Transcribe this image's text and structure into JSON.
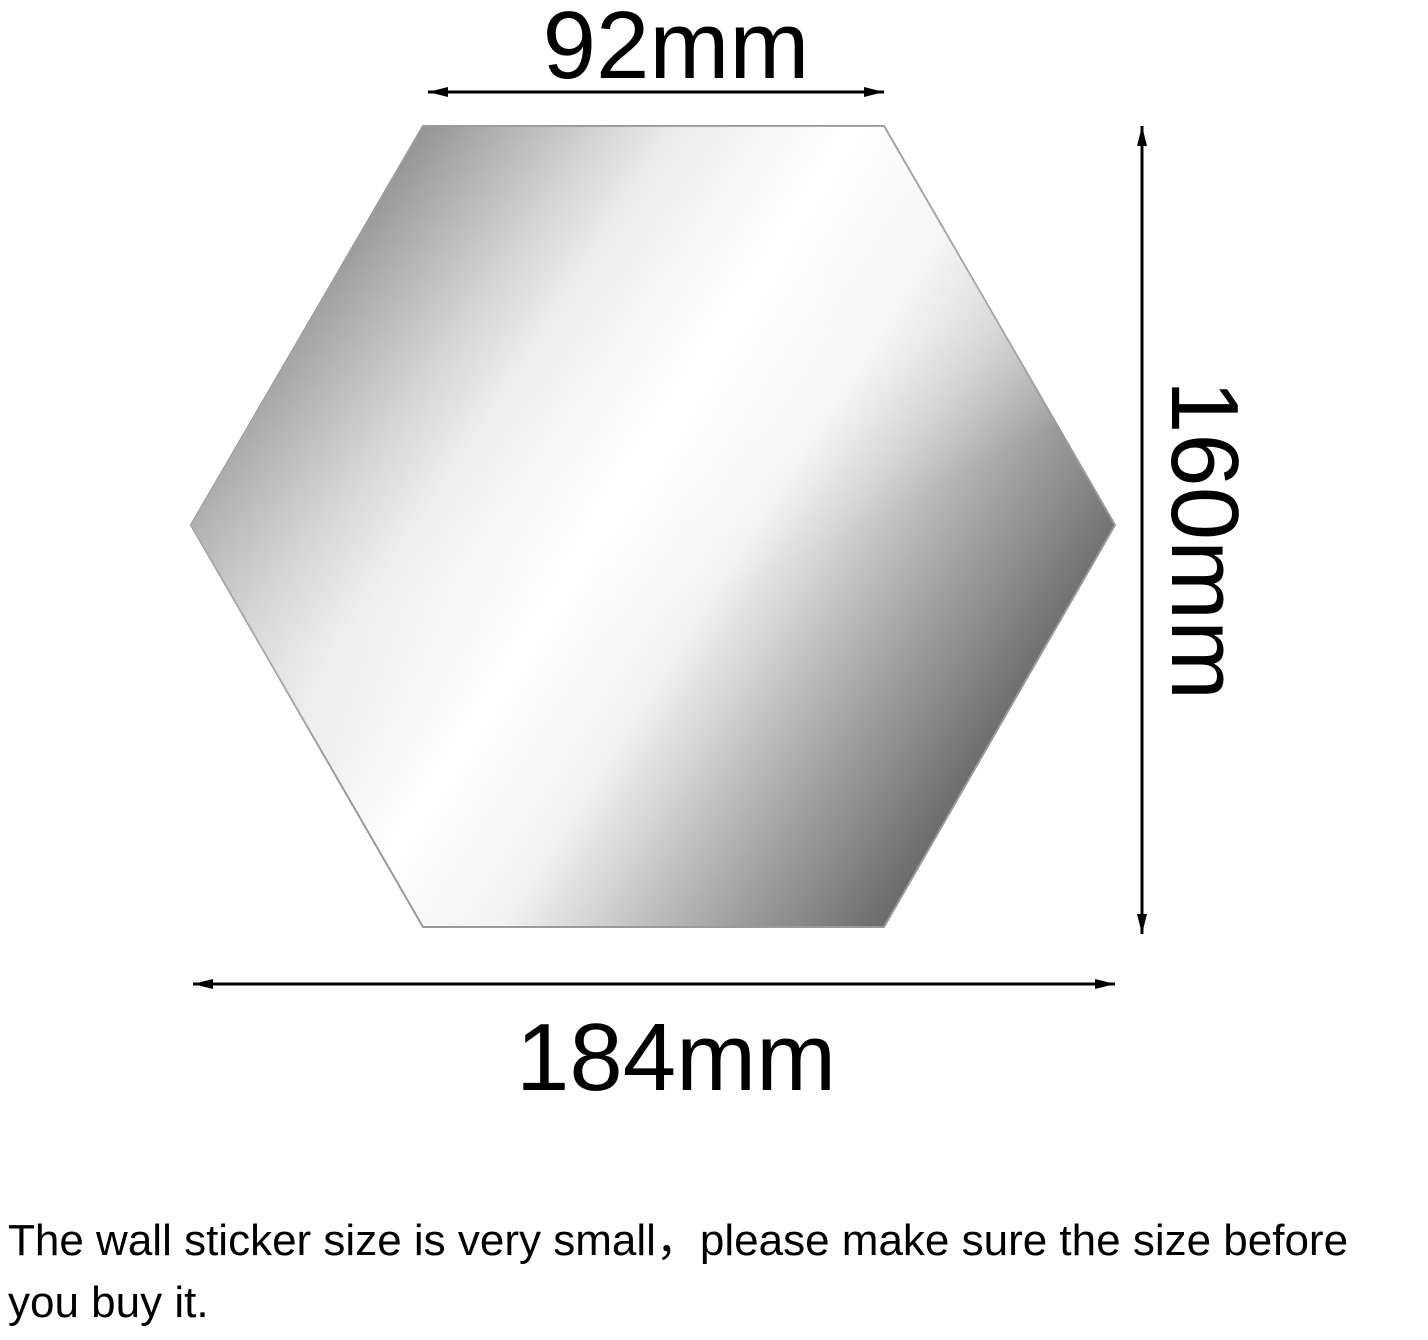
{
  "dimensions": {
    "top_width": "92mm",
    "height": "160mm",
    "bottom_width": "184mm"
  },
  "note": "The wall sticker size is very small，please make sure the size before you buy it.",
  "colors": {
    "ink": "#000000",
    "mirror_dark": "#6e6e6e",
    "mirror_light": "#ffffff"
  }
}
